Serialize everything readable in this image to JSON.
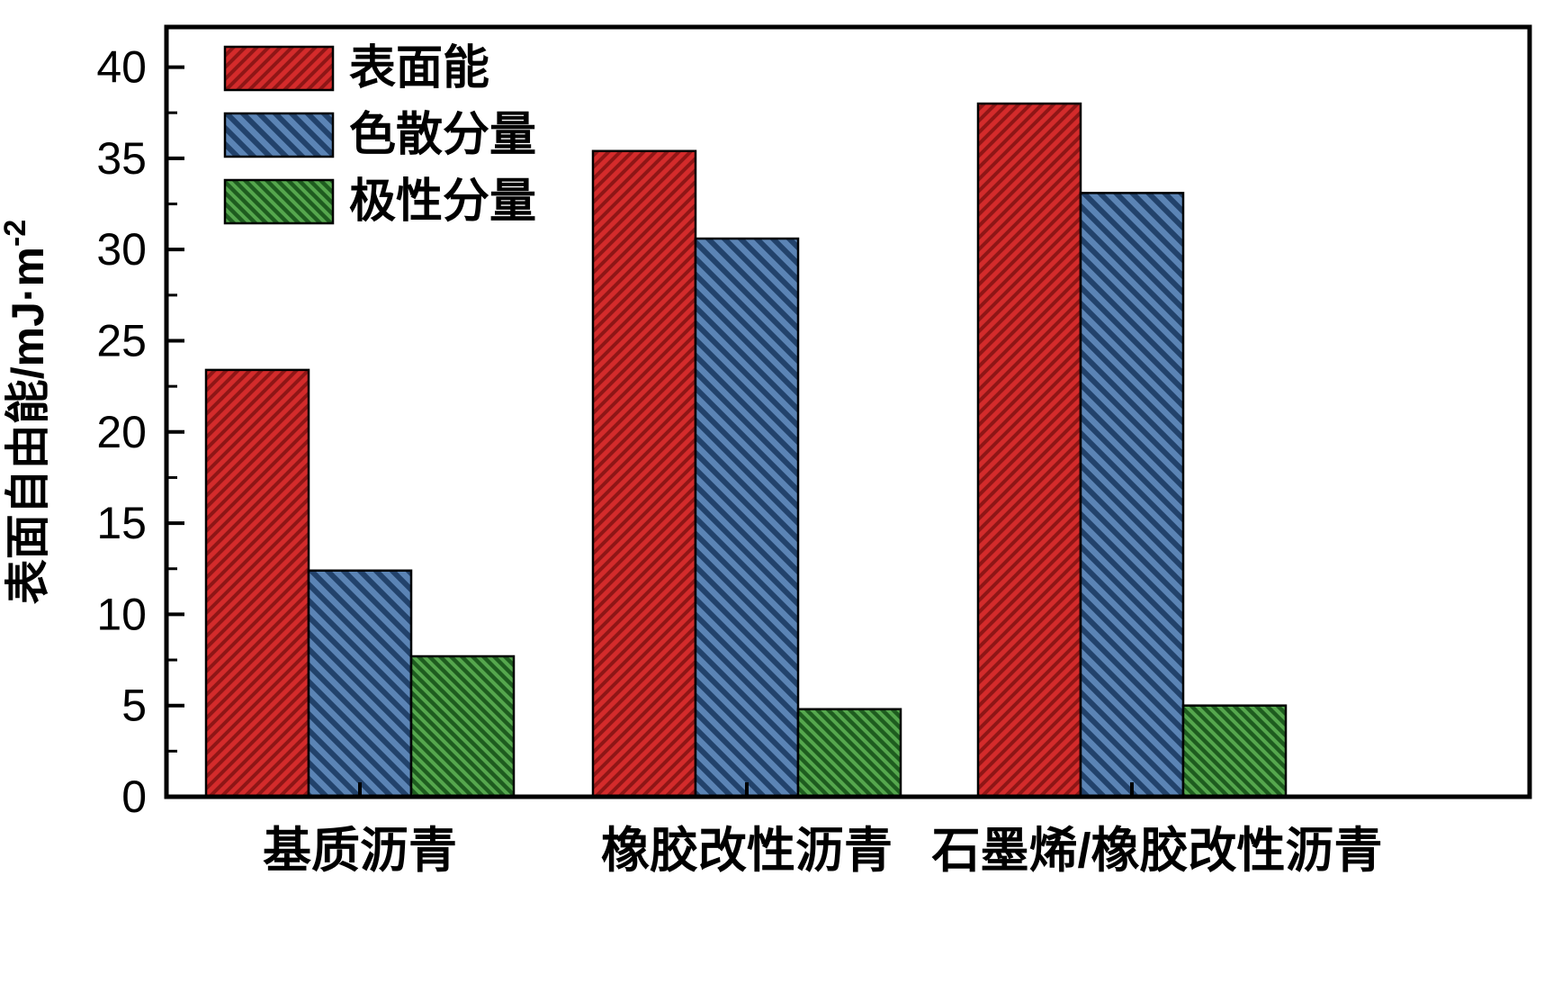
{
  "chart_data": {
    "type": "bar",
    "title": "",
    "ylabel_main": "表面自由能/mJ·m",
    "ylabel_sup": "-2",
    "xlabel": "",
    "categories": [
      "基质沥青",
      "橡胶改性沥青",
      "石墨烯/橡胶改性沥青"
    ],
    "series": [
      {
        "name": "表面能",
        "color": "#d42b2b",
        "hatch": "/",
        "hatch_color": "#8f1616",
        "values": [
          23.4,
          35.4,
          38.0
        ]
      },
      {
        "name": "色散分量",
        "color": "#5b84b5",
        "hatch": "\\",
        "hatch_color": "#22426b",
        "values": [
          12.4,
          30.6,
          33.1
        ]
      },
      {
        "name": "极性分量",
        "color": "#55a74d",
        "hatch": "\\",
        "hatch_color": "#1e5c1f",
        "values": [
          7.7,
          4.8,
          5.0
        ]
      }
    ],
    "ylim": [
      0,
      42.2
    ],
    "yticks": [
      0,
      5,
      10,
      15,
      20,
      25,
      30,
      35,
      40
    ],
    "ytick_minor_step": 2.5,
    "legend_position": "upper left",
    "grid": false,
    "axis_color": "#000000",
    "background_color": "#ffffff"
  }
}
